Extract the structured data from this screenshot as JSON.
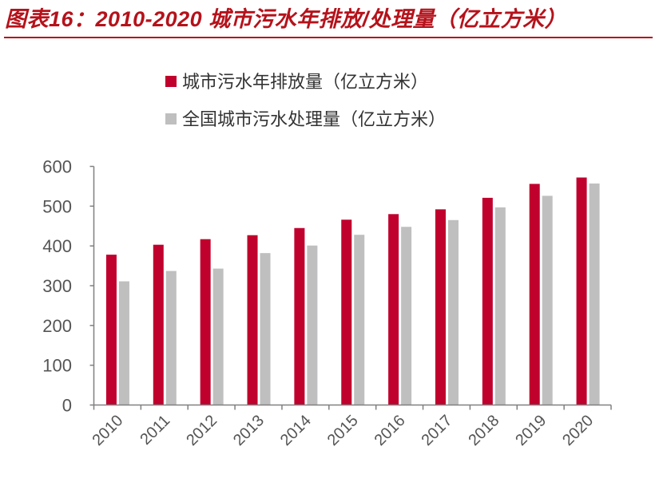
{
  "title": "图表16：2010-2020 城市污水年排放/处理量（亿立方米）",
  "chart_data": {
    "type": "bar",
    "title": "图表16：2010-2020 城市污水年排放/处理量（亿立方米）",
    "categories": [
      "2010",
      "2011",
      "2012",
      "2013",
      "2014",
      "2015",
      "2016",
      "2017",
      "2018",
      "2019",
      "2020"
    ],
    "series": [
      {
        "name": "城市污水年排放量（亿立方米）",
        "color": "#c0002d",
        "values": [
          378,
          403,
          417,
          427,
          445,
          466,
          480,
          492,
          521,
          556,
          572
        ]
      },
      {
        "name": "全国城市污水处理量（亿立方米）",
        "color": "#bfbfbf",
        "values": [
          311,
          337,
          343,
          382,
          401,
          428,
          448,
          465,
          497,
          526,
          557
        ]
      }
    ],
    "ylim": [
      0,
      600
    ],
    "yticks": [
      0,
      100,
      200,
      300,
      400,
      500,
      600
    ],
    "xlabel": "",
    "ylabel": "",
    "grid": false,
    "legend_placement": "top"
  }
}
